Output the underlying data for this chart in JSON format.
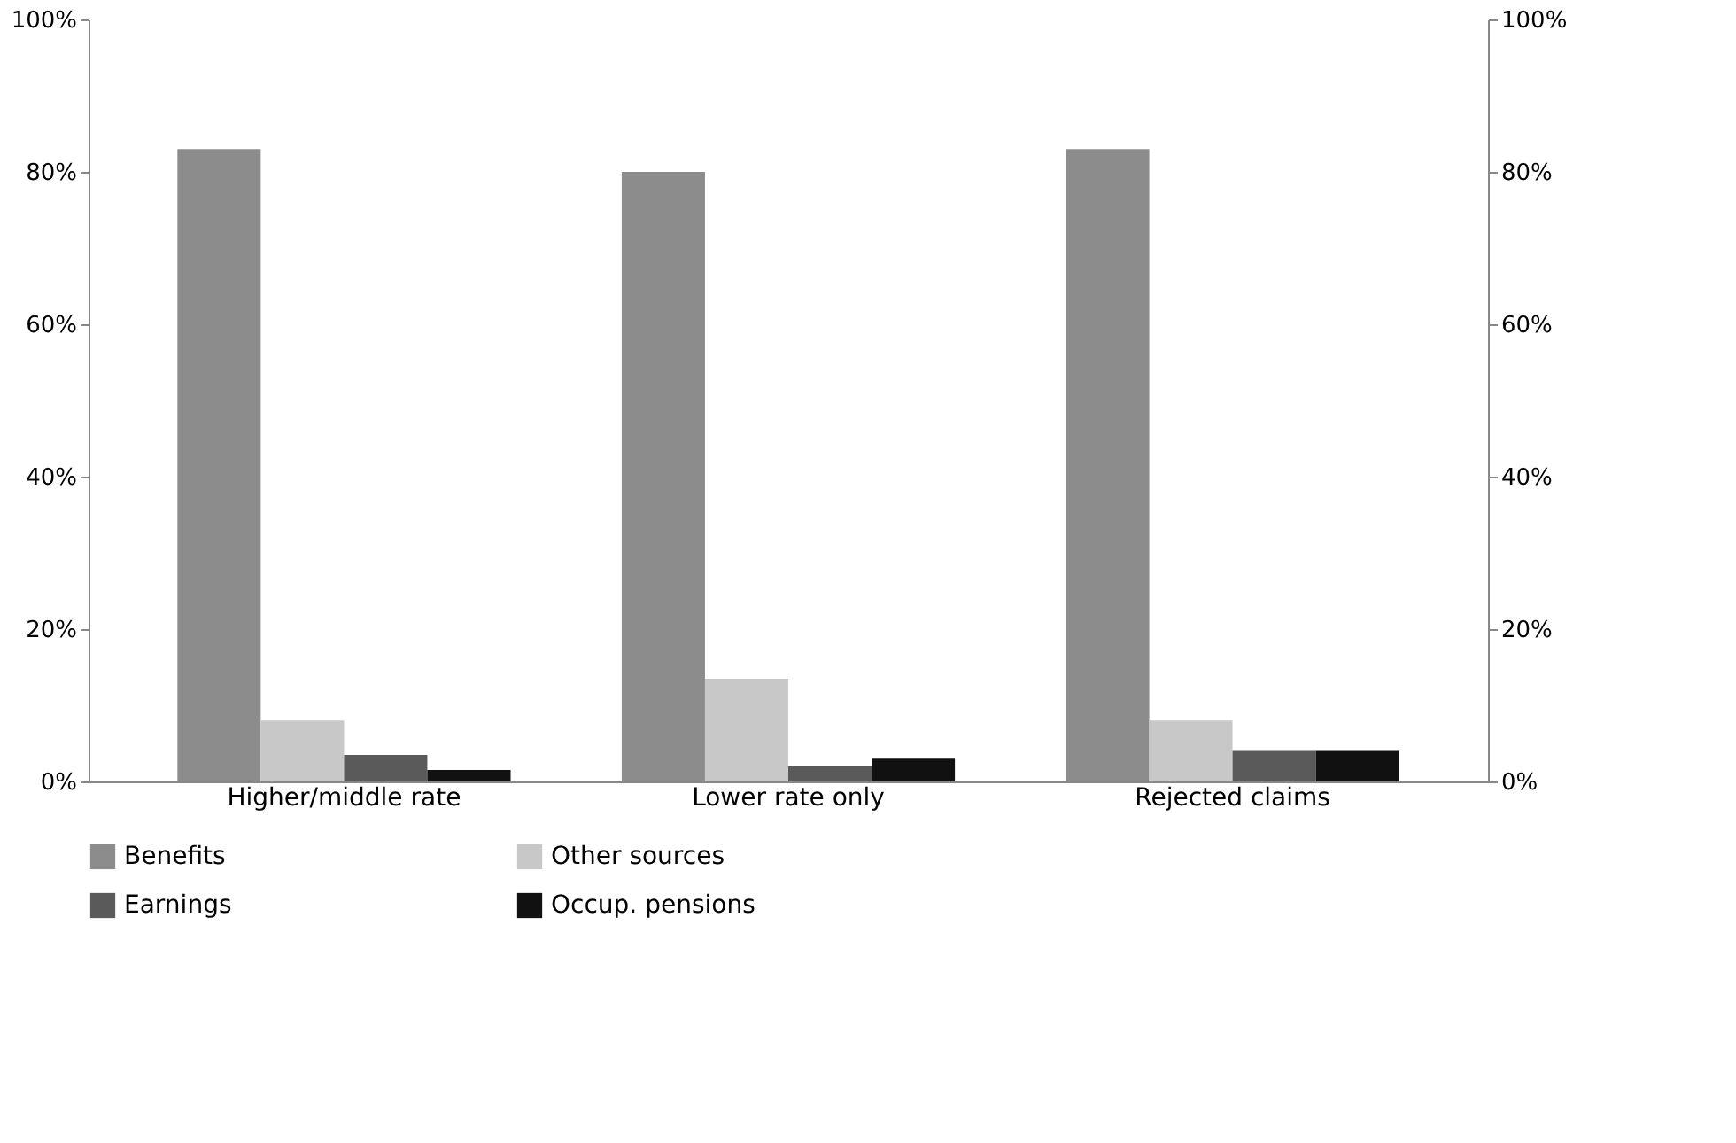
{
  "chart_data": {
    "type": "bar",
    "categories": [
      "Higher/middle rate",
      "Lower rate only",
      "Rejected claims"
    ],
    "series": [
      {
        "name": "Benefits",
        "color": "#8c8c8c",
        "values": [
          83,
          80,
          83
        ]
      },
      {
        "name": "Other sources",
        "color": "#c8c8c8",
        "values": [
          8,
          13.5,
          8
        ]
      },
      {
        "name": "Earnings",
        "color": "#5a5a5a",
        "values": [
          3.5,
          2,
          4
        ]
      },
      {
        "name": "Occup. pensions",
        "color": "#111111",
        "values": [
          1.5,
          3,
          4
        ]
      }
    ],
    "ylim": [
      0,
      100
    ],
    "yticks": [
      {
        "value": 0,
        "label": "0%"
      },
      {
        "value": 20,
        "label": "20%"
      },
      {
        "value": 40,
        "label": "40%"
      },
      {
        "value": 60,
        "label": "60%"
      },
      {
        "value": 80,
        "label": "80%"
      },
      {
        "value": 100,
        "label": "100%"
      }
    ],
    "y2lim": [
      0,
      100
    ],
    "y2ticks": [
      {
        "value": 0,
        "label": "0%"
      },
      {
        "value": 20,
        "label": "20%"
      },
      {
        "value": 40,
        "label": "40%"
      },
      {
        "value": 60,
        "label": "60%"
      },
      {
        "value": 80,
        "label": "80%"
      },
      {
        "value": 100,
        "label": "100%"
      }
    ],
    "grid": false,
    "legend": "bottom"
  }
}
